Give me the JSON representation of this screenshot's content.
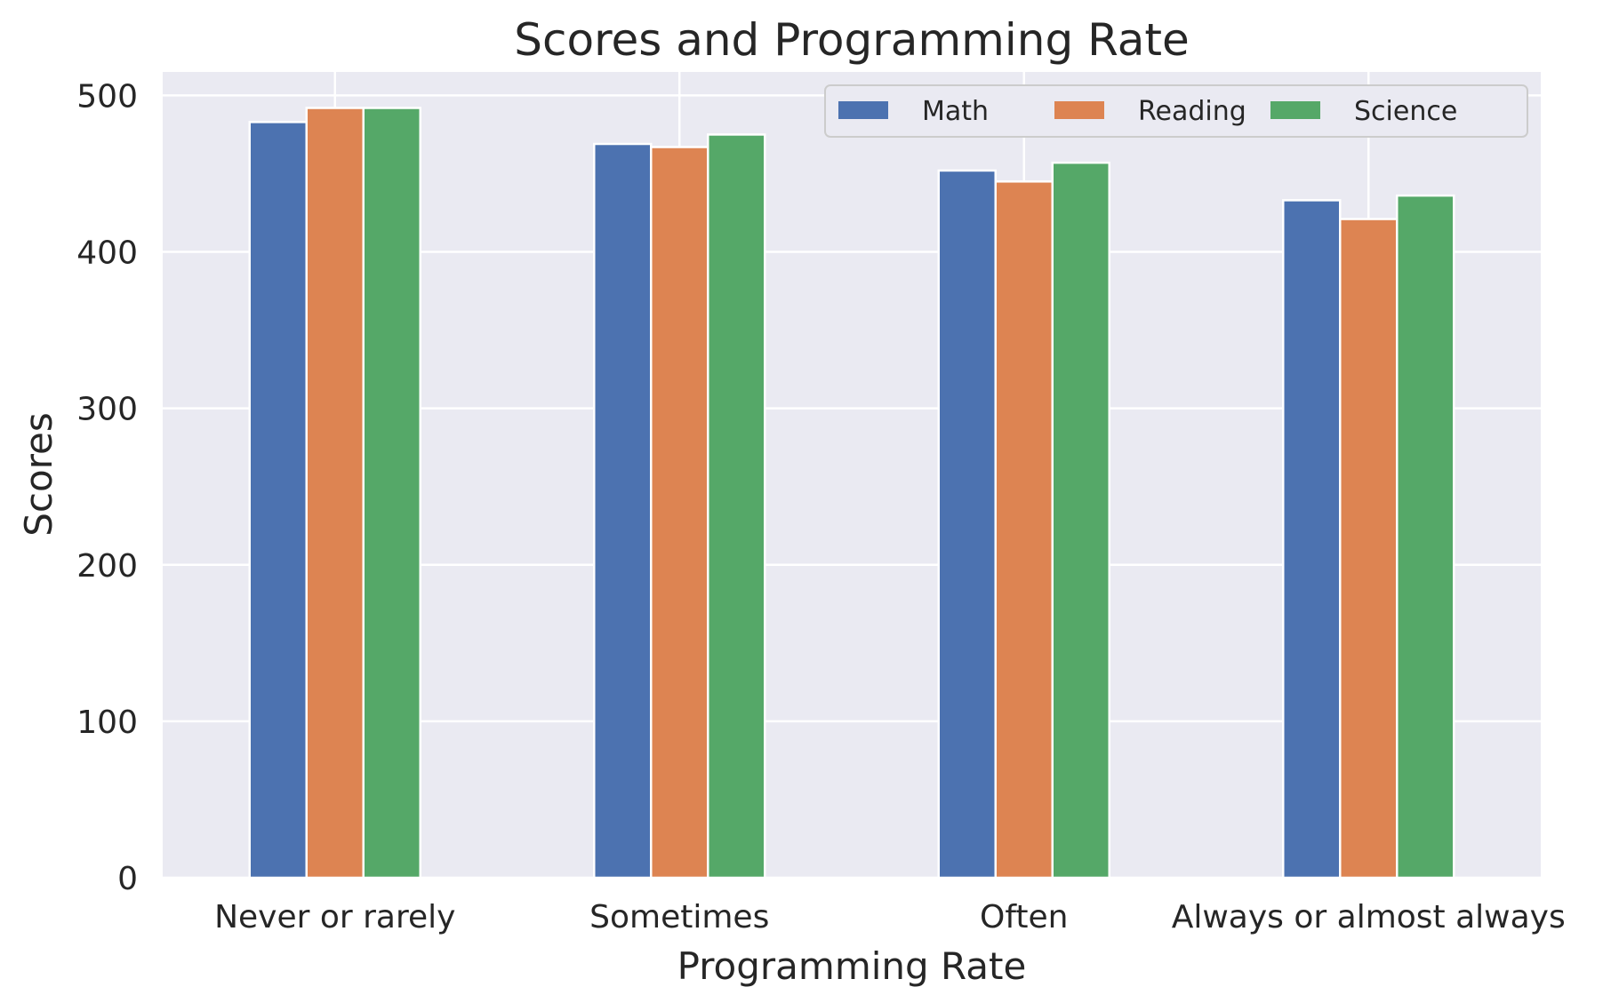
{
  "chart_data": {
    "type": "bar",
    "title": "Scores and Programming Rate",
    "xlabel": "Programming Rate",
    "ylabel": "Scores",
    "categories": [
      "Never or rarely",
      "Sometimes",
      "Often",
      "Always or almost always"
    ],
    "series": [
      {
        "name": "Math",
        "color": "#4c72b0",
        "values": [
          483,
          469,
          452,
          433
        ]
      },
      {
        "name": "Reading",
        "color": "#dd8452",
        "values": [
          492,
          467,
          445,
          421
        ]
      },
      {
        "name": "Science",
        "color": "#55a868",
        "values": [
          492,
          475,
          457,
          436
        ]
      }
    ],
    "ylim": [
      0,
      515
    ],
    "yticks": [
      0,
      100,
      200,
      300,
      400,
      500
    ],
    "grid": true,
    "legend_position": "top-right",
    "plot_background": "#eaeaf2",
    "grid_color": "#ffffff"
  }
}
